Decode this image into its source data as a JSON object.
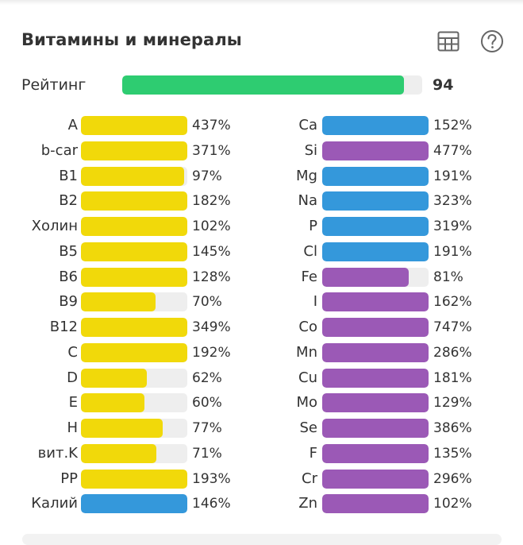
{
  "title": "Витамины и минералы",
  "icons": {
    "table": "table-icon",
    "help": "question-circle-icon"
  },
  "colors": {
    "green": "#2ecc71",
    "yellow": "#f1d90a",
    "blue": "#3498db",
    "purple": "#9b59b6",
    "track": "#eeeeee"
  },
  "rating": {
    "label": "Рейтинг",
    "value": "94",
    "fraction": 0.94
  },
  "left": [
    {
      "name": "A",
      "pct": "437%",
      "fill": 1.0,
      "color": "yellow"
    },
    {
      "name": "b-car",
      "pct": "371%",
      "fill": 1.0,
      "color": "yellow"
    },
    {
      "name": "B1",
      "pct": "97%",
      "fill": 0.97,
      "color": "yellow"
    },
    {
      "name": "B2",
      "pct": "182%",
      "fill": 1.0,
      "color": "yellow"
    },
    {
      "name": "Холин",
      "pct": "102%",
      "fill": 1.0,
      "color": "yellow"
    },
    {
      "name": "B5",
      "pct": "145%",
      "fill": 1.0,
      "color": "yellow"
    },
    {
      "name": "B6",
      "pct": "128%",
      "fill": 1.0,
      "color": "yellow"
    },
    {
      "name": "B9",
      "pct": "70%",
      "fill": 0.7,
      "color": "yellow"
    },
    {
      "name": "B12",
      "pct": "349%",
      "fill": 1.0,
      "color": "yellow"
    },
    {
      "name": "C",
      "pct": "192%",
      "fill": 1.0,
      "color": "yellow"
    },
    {
      "name": "D",
      "pct": "62%",
      "fill": 0.62,
      "color": "yellow"
    },
    {
      "name": "E",
      "pct": "60%",
      "fill": 0.6,
      "color": "yellow"
    },
    {
      "name": "H",
      "pct": "77%",
      "fill": 0.77,
      "color": "yellow"
    },
    {
      "name": "вит.K",
      "pct": "71%",
      "fill": 0.71,
      "color": "yellow"
    },
    {
      "name": "PP",
      "pct": "193%",
      "fill": 1.0,
      "color": "yellow"
    },
    {
      "name": "Калий",
      "pct": "146%",
      "fill": 1.0,
      "color": "blue"
    }
  ],
  "right": [
    {
      "name": "Ca",
      "pct": "152%",
      "fill": 1.0,
      "color": "blue"
    },
    {
      "name": "Si",
      "pct": "477%",
      "fill": 1.0,
      "color": "purple"
    },
    {
      "name": "Mg",
      "pct": "191%",
      "fill": 1.0,
      "color": "blue"
    },
    {
      "name": "Na",
      "pct": "323%",
      "fill": 1.0,
      "color": "blue"
    },
    {
      "name": "P",
      "pct": "319%",
      "fill": 1.0,
      "color": "blue"
    },
    {
      "name": "Cl",
      "pct": "191%",
      "fill": 1.0,
      "color": "blue"
    },
    {
      "name": "Fe",
      "pct": "81%",
      "fill": 0.81,
      "color": "purple"
    },
    {
      "name": "I",
      "pct": "162%",
      "fill": 1.0,
      "color": "purple"
    },
    {
      "name": "Co",
      "pct": "747%",
      "fill": 1.0,
      "color": "purple"
    },
    {
      "name": "Mn",
      "pct": "286%",
      "fill": 1.0,
      "color": "purple"
    },
    {
      "name": "Cu",
      "pct": "181%",
      "fill": 1.0,
      "color": "purple"
    },
    {
      "name": "Mo",
      "pct": "129%",
      "fill": 1.0,
      "color": "purple"
    },
    {
      "name": "Se",
      "pct": "386%",
      "fill": 1.0,
      "color": "purple"
    },
    {
      "name": "F",
      "pct": "135%",
      "fill": 1.0,
      "color": "purple"
    },
    {
      "name": "Cr",
      "pct": "296%",
      "fill": 1.0,
      "color": "purple"
    },
    {
      "name": "Zn",
      "pct": "102%",
      "fill": 1.0,
      "color": "purple"
    }
  ]
}
